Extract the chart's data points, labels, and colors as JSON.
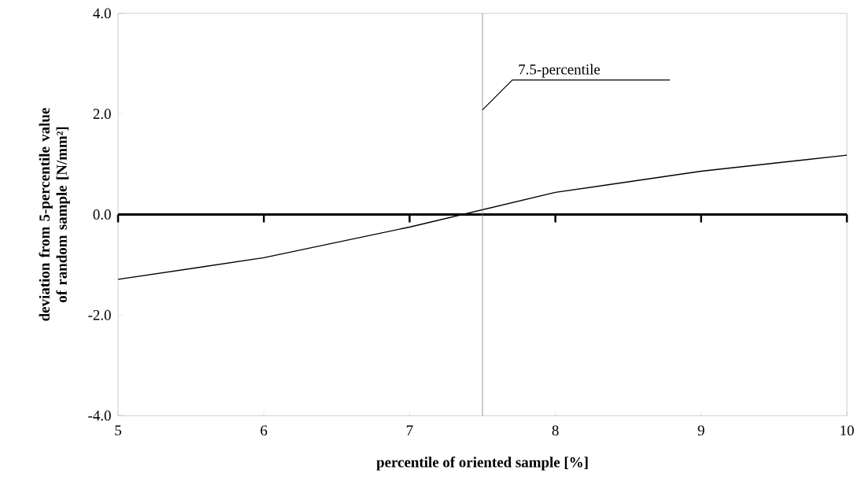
{
  "chart_data": {
    "type": "line",
    "xlabel": "percentile of oriented sample [%]",
    "ylabel": "deviation from 5-percentile value of random sample [N/mm²]",
    "x": [
      5,
      6,
      7,
      8,
      9,
      10
    ],
    "series": [
      {
        "color": "#000000",
        "values": [
          -1.29,
          -0.86,
          -0.25,
          0.44,
          0.86,
          1.18
        ]
      }
    ],
    "xlim": [
      5,
      10
    ],
    "ylim": [
      -4.0,
      4.0
    ],
    "xticks": [
      5,
      6,
      7,
      8,
      9,
      10
    ],
    "yticks": [
      {
        "value": -4,
        "label": "-4.0"
      },
      {
        "value": -2,
        "label": "-2.0"
      },
      {
        "value": 0,
        "label": "0.0"
      },
      {
        "value": 2,
        "label": "2.0"
      },
      {
        "value": 4,
        "label": "4.0"
      }
    ],
    "ref_lines": [
      {
        "axis": "y",
        "value": 0,
        "color": "#000000",
        "line_style": "solid"
      },
      {
        "axis": "x",
        "value": 7.5,
        "label": "7.5-percentile",
        "color": "#808080",
        "line_style": "solid"
      }
    ],
    "grid": false,
    "marker": "none",
    "line_style": "solid"
  }
}
